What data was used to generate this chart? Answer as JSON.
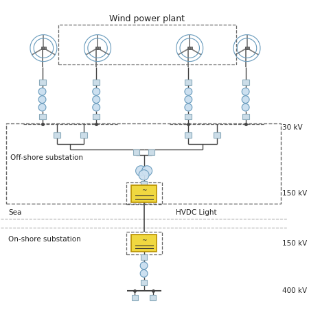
{
  "title": "Wind power plant",
  "bg_color": "#ffffff",
  "line_color": "#444444",
  "box_face": "#ccdde8",
  "box_edge": "#8aaabb",
  "hvdc_face": "#f0d840",
  "hvdc_edge": "#b89000",
  "circle_face": "#cce0f0",
  "circle_edge": "#6699bb",
  "dash_color": "#666666",
  "text_color": "#222222",
  "label_30kv": "30 kV",
  "label_150kv_1": "150 kV",
  "label_150kv_2": "150 kV",
  "label_400kv": "400 kV",
  "label_offshore": "Off-shore substation",
  "label_sea": "Sea",
  "label_onshore": "On-shore substation",
  "label_hvdc": "HVDC Light",
  "figsize": [
    4.5,
    4.71
  ],
  "dpi": 100
}
